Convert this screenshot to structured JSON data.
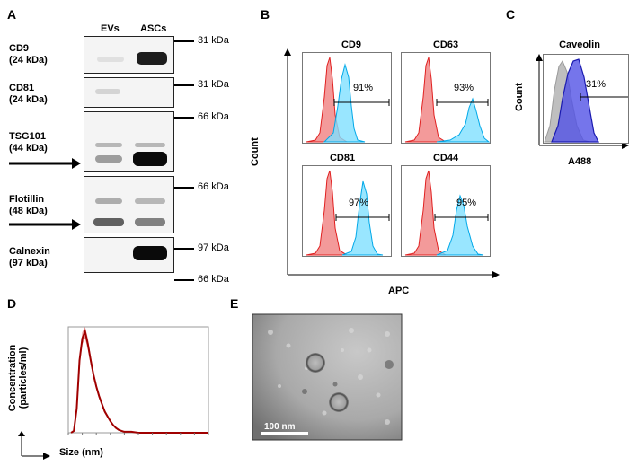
{
  "panels": {
    "a": "A",
    "b": "B",
    "c": "C",
    "d": "D",
    "e": "E"
  },
  "western": {
    "lanes": [
      "EVs",
      "ASCs"
    ],
    "rows": [
      {
        "name": "CD9",
        "mw": "(24 kDa)",
        "marker": "31 kDa",
        "ev_band": 0.12,
        "asc_band": 0.95
      },
      {
        "name": "CD81",
        "mw": "(24 kDa)",
        "marker": "31 kDa",
        "ev_band": 0.2,
        "asc_band": 0.0
      },
      {
        "name": "TSG101",
        "mw": "(44 kDa)",
        "marker": "66 kDa",
        "ev_band": 0.45,
        "asc_band": 1.0
      },
      {
        "name": "Flotillin",
        "mw": "(48 kDa)",
        "marker": "66 kDa",
        "ev_band": 0.7,
        "asc_band": 0.55
      },
      {
        "name": "Calnexin",
        "mw": "(97 kDa)",
        "marker_top": "97 kDa",
        "marker_bottom": "66 kDa",
        "ev_band": 0.0,
        "asc_band": 1.0
      }
    ]
  },
  "flow_b": {
    "plots": [
      {
        "title": "CD9",
        "percent": "91%"
      },
      {
        "title": "CD63",
        "percent": "93%"
      },
      {
        "title": "CD81",
        "percent": "97%"
      },
      {
        "title": "CD44",
        "percent": "95%"
      }
    ],
    "xlabel": "APC",
    "ylabel": "Count"
  },
  "flow_c": {
    "title": "Caveolin",
    "percent": "31%",
    "xlabel": "A488",
    "ylabel": "Count"
  },
  "chart_data": {
    "type": "line",
    "xlabel": "Size (nm)",
    "ylabel": "Concentration (particles/ml)",
    "xlim": [
      0,
      1000
    ],
    "ylim": [
      0,
      1.1
    ],
    "x": [
      20,
      40,
      60,
      80,
      100,
      120,
      140,
      160,
      180,
      200,
      220,
      240,
      260,
      280,
      300,
      320,
      340,
      360,
      380,
      400,
      450,
      500,
      600,
      700,
      800,
      900,
      1000
    ],
    "series": [
      {
        "values": [
          0.0,
          0.02,
          0.25,
          0.75,
          0.98,
          1.05,
          0.92,
          0.75,
          0.6,
          0.48,
          0.38,
          0.3,
          0.22,
          0.17,
          0.12,
          0.08,
          0.05,
          0.03,
          0.02,
          0.01,
          0.01,
          0.0,
          0.0,
          0.0,
          0.0,
          0.0,
          0.0
        ]
      }
    ]
  },
  "tem": {
    "scale_bar": "100 nm"
  }
}
